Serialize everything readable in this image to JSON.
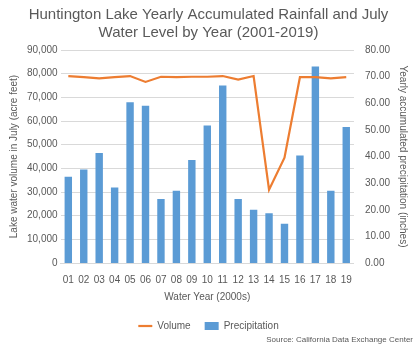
{
  "chart_data": {
    "type": "bar",
    "title": "Huntington Lake Yearly Accumulated Rainfall and July Water Level by Year (2001-2019)",
    "x_label": "Water Year (2000s)",
    "y_label": "Lake water volume in July (acre feet)",
    "y2_label": "Yearly accumulated precipitation (inches)",
    "annotations": [
      "Source: California Data Exchange Center"
    ],
    "categories": [
      "01",
      "02",
      "03",
      "04",
      "05",
      "06",
      "07",
      "08",
      "09",
      "10",
      "11",
      "12",
      "13",
      "14",
      "15",
      "16",
      "17",
      "18",
      "19"
    ],
    "series": [
      {
        "name": "Precipitation",
        "type": "bar",
        "color": "#5B9BD5",
        "axis": "y2",
        "values": [
          32.4,
          35.1,
          41.3,
          28.4,
          60.4,
          59.1,
          24.0,
          27.1,
          38.7,
          51.6,
          66.7,
          24.0,
          20.0,
          18.7,
          14.7,
          40.4,
          73.8,
          27.1,
          51.1
        ]
      },
      {
        "name": "Volume",
        "type": "line",
        "color": "#ED7D31",
        "values": [
          79000,
          78500,
          78000,
          78500,
          79000,
          76500,
          78700,
          78500,
          78700,
          78700,
          79000,
          77500,
          79000,
          31000,
          44500,
          78500,
          78500,
          78000,
          78500
        ]
      }
    ],
    "ylim": [
      0,
      90000
    ],
    "yticks": [
      0,
      {
        "value": 10000,
        "label": "10,000"
      },
      {
        "value": 20000,
        "label": "20,000"
      },
      {
        "value": 30000,
        "label": "30,000"
      },
      {
        "value": 40000,
        "label": "40,000"
      },
      {
        "value": 50000,
        "label": "50,000"
      },
      {
        "value": 60000,
        "label": "60,000"
      },
      {
        "value": 70000,
        "label": "70,000"
      },
      {
        "value": 80000,
        "label": "80,000"
      },
      {
        "value": 90000,
        "label": "90,000"
      }
    ],
    "y2lim": [
      0,
      80
    ],
    "y2ticks": [
      {
        "value": 0,
        "label": "0.00"
      },
      {
        "value": 10,
        "label": "10.00"
      },
      {
        "value": 20,
        "label": "20.00"
      },
      {
        "value": 30,
        "label": "30.00"
      },
      {
        "value": 40,
        "label": "40.00"
      },
      {
        "value": 50,
        "label": "50.00"
      },
      {
        "value": 60,
        "label": "60.00"
      },
      {
        "value": 70,
        "label": "70.00"
      },
      {
        "value": 80,
        "label": "80.00"
      }
    ],
    "grid": true,
    "legend": "bottom"
  }
}
